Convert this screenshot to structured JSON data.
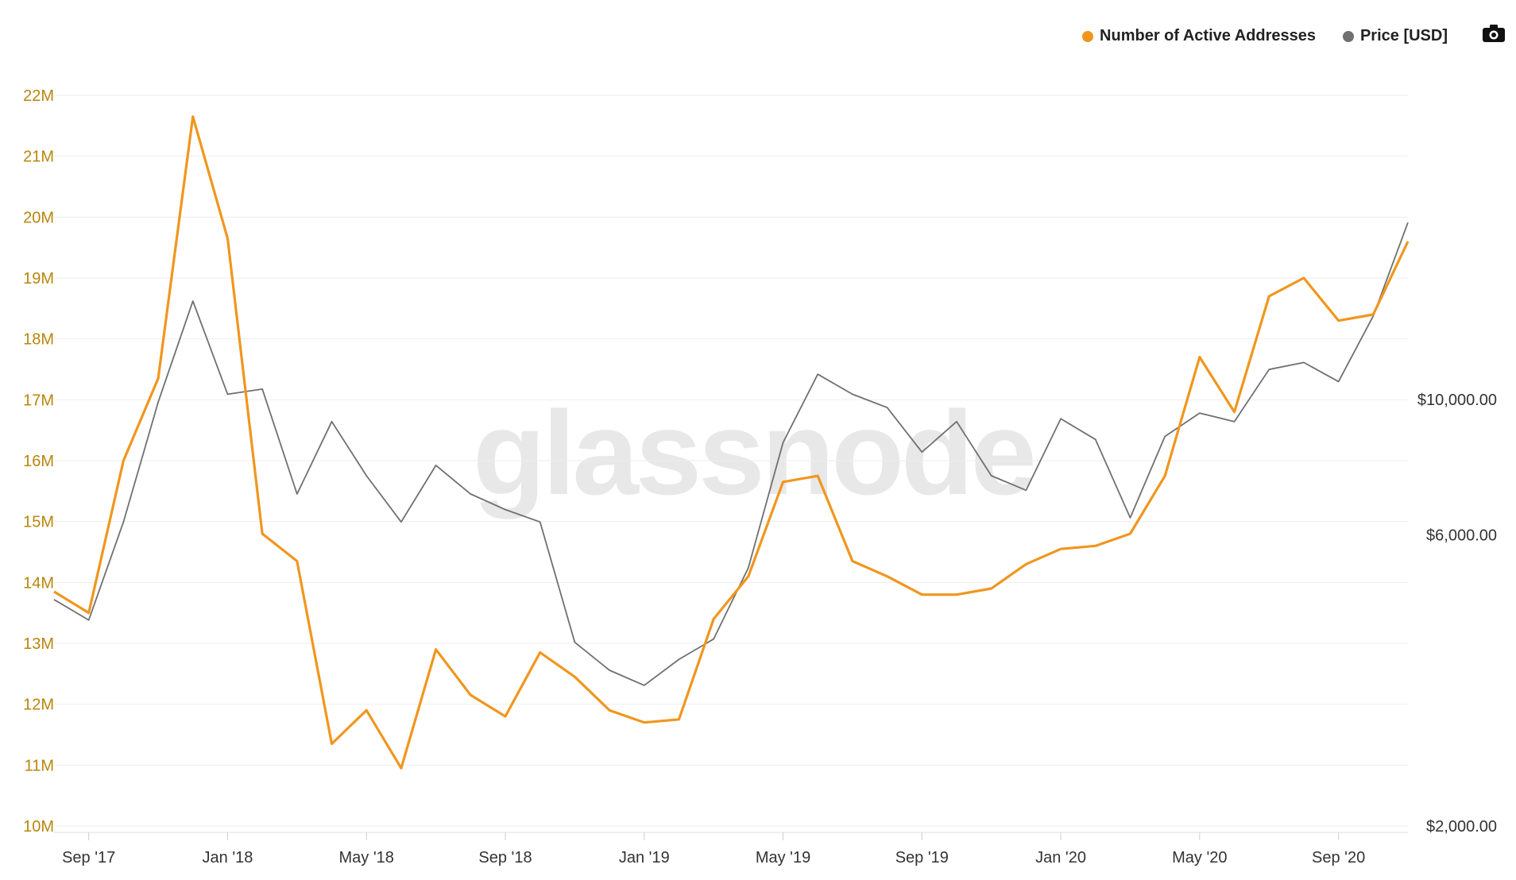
{
  "legend": {
    "series_1": "Number of Active Addresses",
    "series_2": "Price [USD]"
  },
  "watermark": "glassnode",
  "colors": {
    "addresses": "#f0961e",
    "price": "#707070",
    "grid": "#eeeeee",
    "left_tick": "#b8860b"
  },
  "icons": {
    "export": "camera-icon"
  },
  "chart_data": {
    "type": "line",
    "x": [
      "2017-08",
      "2017-09",
      "2017-10",
      "2017-11",
      "2017-12",
      "2018-01",
      "2018-02",
      "2018-03",
      "2018-04",
      "2018-05",
      "2018-06",
      "2018-07",
      "2018-08",
      "2018-09",
      "2018-10",
      "2018-11",
      "2018-12",
      "2019-01",
      "2019-02",
      "2019-03",
      "2019-04",
      "2019-05",
      "2019-06",
      "2019-07",
      "2019-08",
      "2019-09",
      "2019-10",
      "2019-11",
      "2019-12",
      "2020-01",
      "2020-02",
      "2020-03",
      "2020-04",
      "2020-05",
      "2020-06",
      "2020-07",
      "2020-08",
      "2020-09",
      "2020-10",
      "2020-11"
    ],
    "series": [
      {
        "name": "Number of Active Addresses",
        "axis": "left",
        "values": [
          13.85,
          13.5,
          16.0,
          17.35,
          21.65,
          19.65,
          14.8,
          14.35,
          11.35,
          11.9,
          10.95,
          12.9,
          12.15,
          11.8,
          12.85,
          12.45,
          11.9,
          11.7,
          11.75,
          13.4,
          14.1,
          15.65,
          15.75,
          14.35,
          14.1,
          13.8,
          13.8,
          13.9,
          14.3,
          14.55,
          14.6,
          14.8,
          15.75,
          17.7,
          16.8,
          18.7,
          19.0,
          18.3,
          18.4,
          19.6
        ]
      },
      {
        "name": "Price [USD]",
        "axis": "right",
        "values": [
          4700,
          4350,
          6300,
          9900,
          14500,
          10200,
          10400,
          7000,
          9200,
          7500,
          6300,
          7800,
          7000,
          6600,
          6300,
          4000,
          3600,
          3400,
          3750,
          4050,
          5300,
          8500,
          11000,
          10200,
          9700,
          8200,
          9200,
          7500,
          7100,
          9300,
          8600,
          6400,
          8700,
          9500,
          9200,
          11200,
          11500,
          10700,
          13700,
          19500
        ]
      }
    ],
    "y_left": {
      "ticks": [
        "10M",
        "11M",
        "12M",
        "13M",
        "14M",
        "15M",
        "16M",
        "17M",
        "18M",
        "19M",
        "20M",
        "21M",
        "22M"
      ],
      "min": 10,
      "max": 22
    },
    "y_right": {
      "ticks": [
        "$2,000.00",
        "$6,000.00",
        "$10,000.00"
      ],
      "scale": "log"
    },
    "x_ticks": [
      "Sep '17",
      "Jan '18",
      "May '18",
      "Sep '18",
      "Jan '19",
      "May '19",
      "Sep '19",
      "Jan '20",
      "May '20",
      "Sep '20"
    ],
    "grid": true,
    "legend_position": "top-right"
  }
}
